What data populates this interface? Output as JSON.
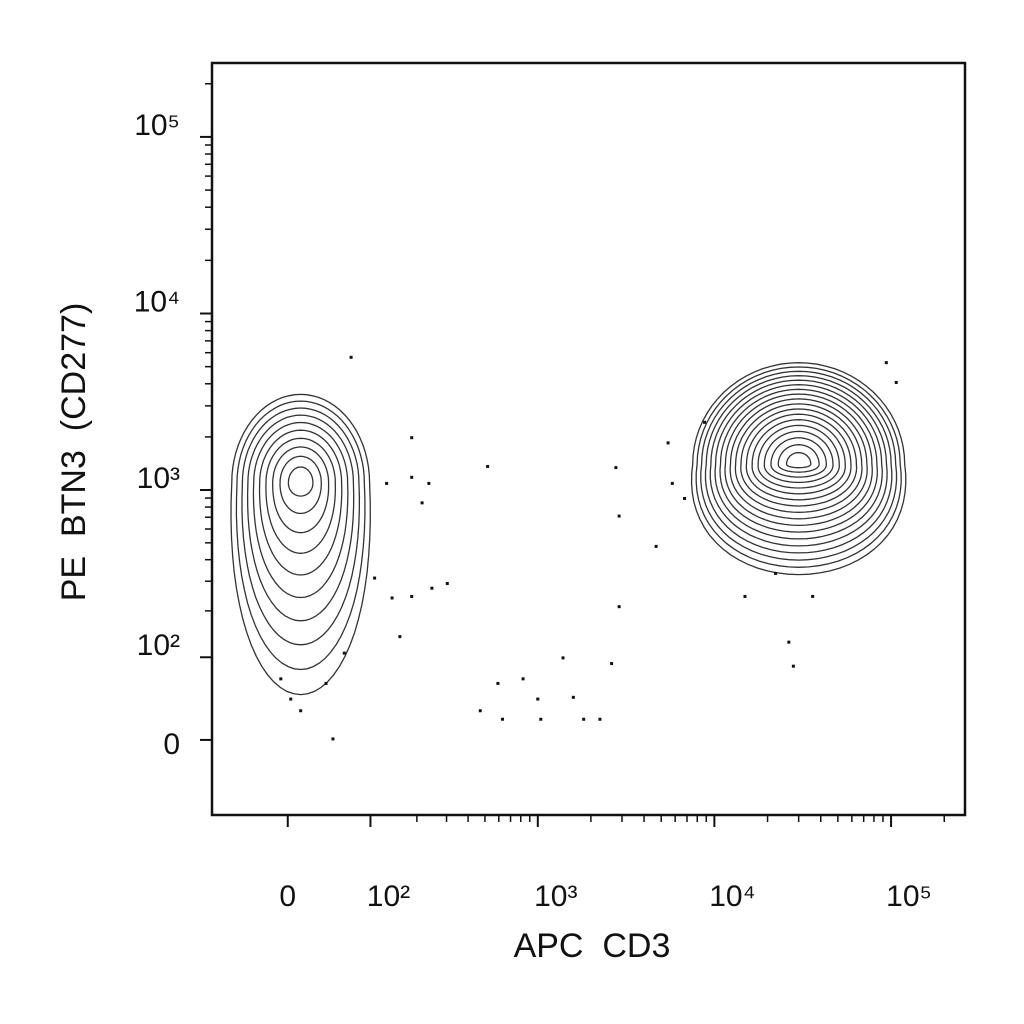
{
  "chart_data": {
    "type": "contour",
    "x_label": "APC  CD3",
    "y_label": "PE  BTN3  (CD277)",
    "xscale": "biexponential",
    "yscale": "biexponential",
    "xlim": [
      -89,
      262144
    ],
    "ylim": [
      -88,
      262144
    ],
    "xticks": [
      0,
      {
        "value": 100,
        "label": "10²"
      },
      {
        "value": 1000,
        "label": "10³"
      },
      {
        "value": 10000,
        "label": "10⁴"
      },
      {
        "value": 100000,
        "label": "10⁵"
      }
    ],
    "yticks": [
      0,
      {
        "value": 100,
        "label": "10²"
      },
      {
        "value": 1000,
        "label": "10³"
      },
      {
        "value": 10000,
        "label": "10⁴"
      },
      {
        "value": 100000,
        "label": "10⁵"
      }
    ],
    "color": "#333333",
    "populations": [
      {
        "x": 13,
        "y": 1100,
        "levels": 10,
        "width": 0.78,
        "height_below": 2.4,
        "height_above": 1.0
      },
      {
        "x": 30000,
        "y": 1400,
        "levels": 18,
        "width": 1.2,
        "height_below": 1.25,
        "height_above": 1.15
      }
    ],
    "points": {
      "x": [
        71,
        186,
        129,
        186,
        236,
        215,
        107,
        140,
        186,
        246,
        303,
        157,
        518,
        2770,
        2890,
        2890,
        4680,
        5470,
        5780,
        6780,
        8800,
        14900,
        22200,
        36000,
        26400,
        28000,
        94000,
        107000,
        62,
        40,
        -7,
        3,
        13,
        48,
        470,
        593,
        825,
        1000,
        1040,
        1390,
        1590,
        1820,
        2250,
        2620,
        630
      ],
      "y": [
        5650,
        1980,
        1090,
        1180,
        1090,
        845,
        313,
        239,
        244,
        273,
        291,
        138,
        1360,
        1340,
        711,
        212,
        477,
        1850,
        1090,
        895,
        2420,
        244,
        333,
        244,
        127,
        86,
        5270,
        4070,
        107,
        62,
        68,
        43,
        30,
        1,
        30,
        62,
        68,
        43,
        21,
        99,
        45,
        21,
        21,
        90,
        21
      ]
    }
  }
}
